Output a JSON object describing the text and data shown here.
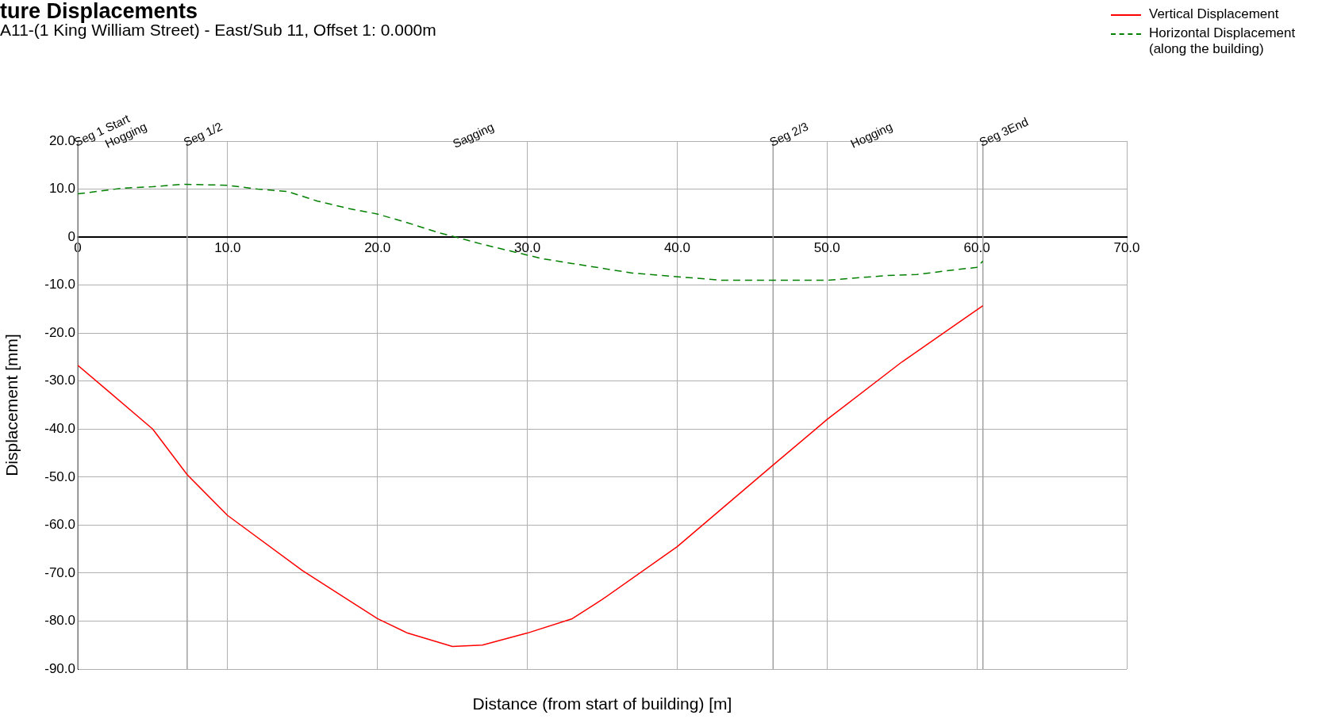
{
  "chart_data": {
    "type": "line",
    "title": "ture Displacements",
    "subtitle": "A11-(1 King William Street) - East/Sub 11, Offset 1: 0.000m",
    "xlabel": "Distance (from start of building) [m]",
    "ylabel": "Displacement [mm]",
    "series": [
      {
        "name": "Vertical Displacement",
        "color": "#ff0000",
        "line_style": "solid",
        "x": [
          0,
          2,
          5,
          7.3,
          10,
          15,
          20,
          22,
          25,
          27,
          30,
          33,
          35,
          40,
          46.4,
          50,
          55,
          58,
          60.4
        ],
        "values": [
          -26.7,
          -32,
          -40,
          -49.5,
          -58,
          -69.5,
          -79.5,
          -82.5,
          -85.3,
          -85,
          -82.5,
          -79.5,
          -75.5,
          -64.5,
          -47.5,
          -38,
          -26,
          -19.5,
          -14.3
        ]
      },
      {
        "name": "Horizontal Displacement (along the building)",
        "color": "#008000",
        "line_style": "dashed",
        "x": [
          0,
          3,
          5,
          7,
          10,
          12,
          14,
          16,
          18,
          20,
          22,
          24,
          25,
          27,
          29,
          31,
          33,
          35,
          37,
          39,
          41,
          43,
          46,
          50,
          52,
          54,
          56,
          58,
          60,
          60.4
        ],
        "values": [
          9,
          10.2,
          10.5,
          11,
          10.8,
          10,
          9.5,
          7.5,
          6,
          4.8,
          3,
          1,
          0.2,
          -1.5,
          -3,
          -4.5,
          -5.5,
          -6.5,
          -7.5,
          -8,
          -8.5,
          -9,
          -9,
          -9,
          -8.5,
          -8,
          -7.8,
          -7,
          -6.3,
          -5
        ]
      }
    ],
    "xlim": [
      0,
      70
    ],
    "xticks": [
      {
        "value": 0,
        "label": "0"
      },
      {
        "value": 10,
        "label": "10.0"
      },
      {
        "value": 20,
        "label": "20.0"
      },
      {
        "value": 30,
        "label": "30.0"
      },
      {
        "value": 40,
        "label": "40.0"
      },
      {
        "value": 50,
        "label": "50.0"
      },
      {
        "value": 60,
        "label": "60.0"
      },
      {
        "value": 70,
        "label": "70.0"
      }
    ],
    "ylim": [
      -90,
      20
    ],
    "yticks": [
      {
        "value": 20,
        "label": "20.0"
      },
      {
        "value": 10,
        "label": "10.0"
      },
      0,
      {
        "value": -10,
        "label": "-10.0"
      },
      {
        "value": -20,
        "label": "-20.0"
      },
      {
        "value": -30,
        "label": "-30.0"
      },
      {
        "value": -40,
        "label": "-40.0"
      },
      {
        "value": -50,
        "label": "-50.0"
      },
      {
        "value": -60,
        "label": "-60.0"
      },
      {
        "value": -70,
        "label": "-70.0"
      },
      {
        "value": -80,
        "label": "-80.0"
      },
      {
        "value": -90,
        "label": "-90.0"
      }
    ],
    "ref_lines": [
      {
        "axis": "x",
        "value": 0,
        "label": "Seg 1 Start",
        "color": "#a0a0a0"
      },
      {
        "axis": "x",
        "value": 7.3,
        "label": "Seg 1/2",
        "color": "#a0a0a0"
      },
      {
        "axis": "x",
        "value": 46.4,
        "label": "Seg 2/3",
        "color": "#a0a0a0"
      },
      {
        "axis": "x",
        "value": 60.4,
        "label": "Seg 3End",
        "color": "#a0a0a0"
      }
    ],
    "annotations": [
      "Hogging",
      "Sagging",
      "Hogging"
    ],
    "grid": true,
    "legend": "top right",
    "marker": "none"
  }
}
